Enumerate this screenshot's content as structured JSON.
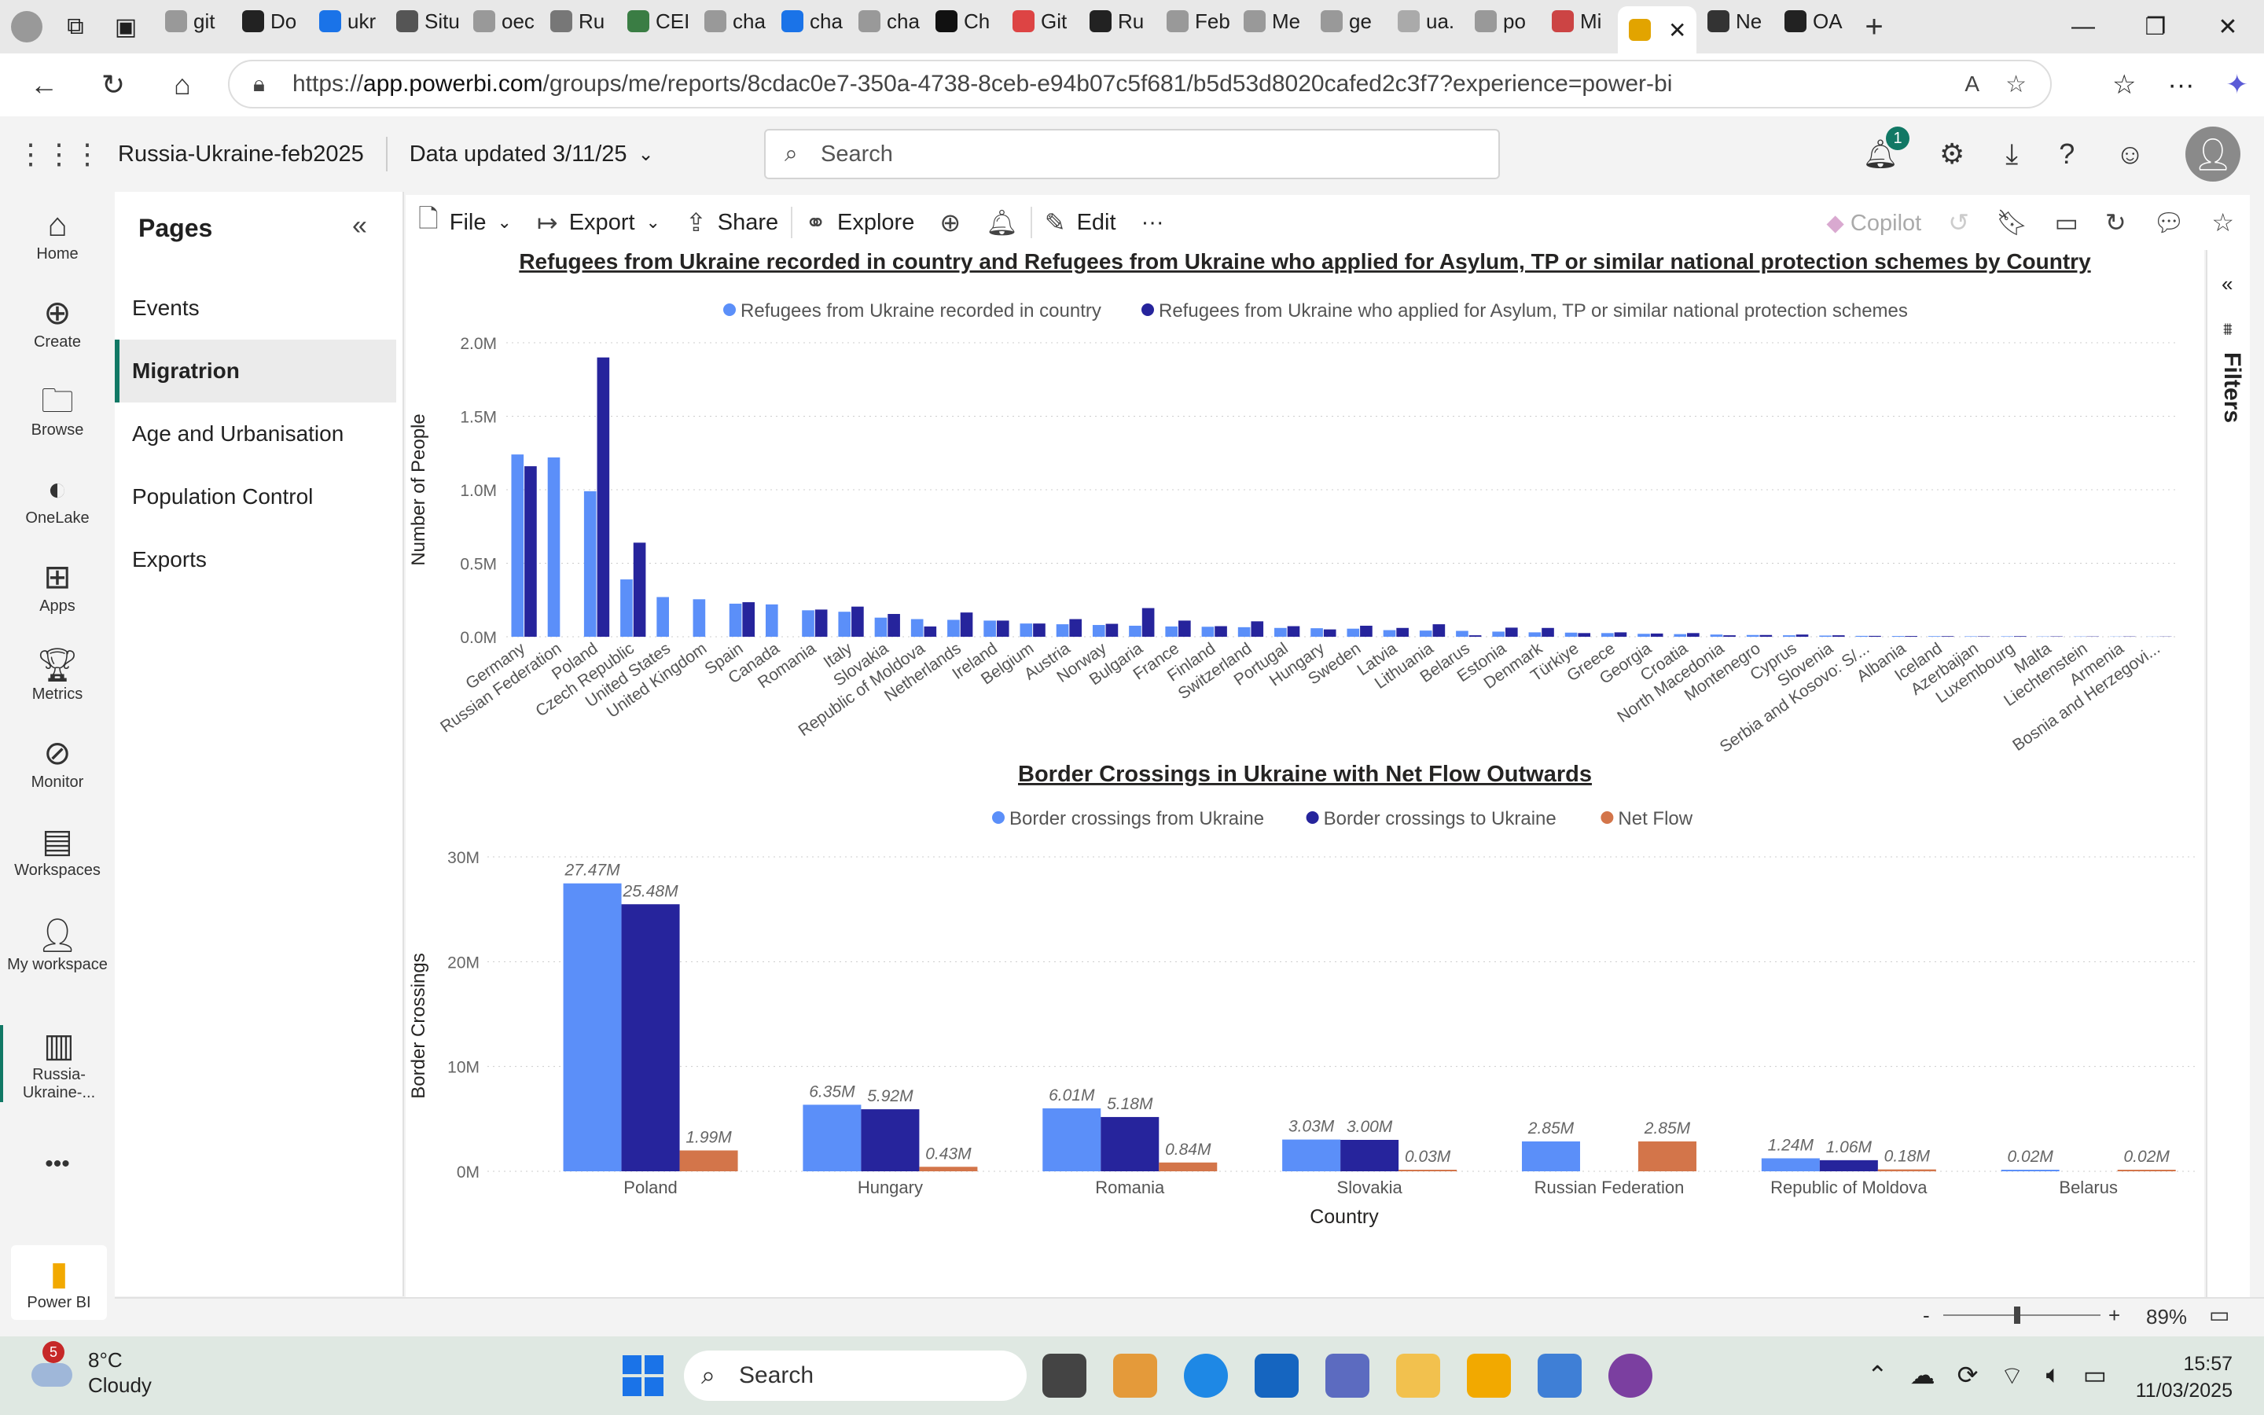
{
  "browser": {
    "tabs": [
      "git",
      "Do",
      "ukr",
      "Situ",
      "oec",
      "Ru",
      "CEI",
      "cha",
      "cha",
      "cha",
      "Ch",
      "Git",
      "Ru",
      "Feb",
      "Me",
      "ge",
      "ua.",
      "po",
      "Mi",
      "",
      "Ne",
      "OA"
    ],
    "url_prefix": "https://",
    "url_host": "app.powerbi.com",
    "url_path": "/groups/me/reports/8cdac0e7-350a-4738-8ceb-e94b07c5f681/b5d53d8020cafed2c3f7?experience=power-bi"
  },
  "header": {
    "report_name": "Russia-Ukraine-feb2025",
    "data_updated": "Data updated 3/11/25",
    "search_placeholder": "Search",
    "notification_count": "1"
  },
  "leftnav": {
    "items": [
      "Home",
      "Create",
      "Browse",
      "OneLake",
      "Apps",
      "Metrics",
      "Monitor",
      "Workspaces",
      "My workspace",
      "Russia-Ukraine-...",
      "Power BI"
    ],
    "more": "•••"
  },
  "pages": {
    "title": "Pages",
    "items": [
      "Events",
      "Migratrion",
      "Age and Urbanisation",
      "Population Control",
      "Exports"
    ],
    "selected": 1
  },
  "toolbar": {
    "file": "File",
    "export": "Export",
    "share": "Share",
    "explore": "Explore",
    "edit": "Edit",
    "more": "···",
    "copilot": "Copilot"
  },
  "filters_label": "Filters",
  "status": {
    "zoom": "89%",
    "minus": "-",
    "plus": "+"
  },
  "colors": {
    "series1": "#5b8ff9",
    "series2": "#26249c",
    "series3": "#d3754a",
    "accent": "#117865"
  },
  "chart_data": [
    {
      "type": "bar",
      "title": "Refugees from Ukraine recorded in country and Refugees from Ukraine who applied for Asylum, TP or similar national protection schemes by Country",
      "ylabel": "Number of People",
      "xlabel": "",
      "ylim": [
        0,
        2000000
      ],
      "yticks": [
        "0.0M",
        "0.5M",
        "1.0M",
        "1.5M",
        "2.0M"
      ],
      "legend_position": "top-center",
      "categories": [
        "Germany",
        "Russian Federation",
        "Poland",
        "Czech Republic",
        "United States",
        "United Kingdom",
        "Spain",
        "Canada",
        "Romania",
        "Italy",
        "Slovakia",
        "Republic of Moldova",
        "Netherlands",
        "Ireland",
        "Belgium",
        "Austria",
        "Norway",
        "Bulgaria",
        "France",
        "Finland",
        "Switzerland",
        "Portugal",
        "Hungary",
        "Sweden",
        "Latvia",
        "Lithuania",
        "Belarus",
        "Estonia",
        "Denmark",
        "Türkiye",
        "Greece",
        "Georgia",
        "Croatia",
        "North Macedonia",
        "Montenegro",
        "Cyprus",
        "Slovenia",
        "Serbia and Kosovo: S/...",
        "Albania",
        "Iceland",
        "Azerbaijan",
        "Luxembourg",
        "Malta",
        "Liechtenstein",
        "Armenia",
        "Bosnia and Herzegovi..."
      ],
      "series": [
        {
          "name": "Refugees from Ukraine recorded in country",
          "values": [
            1240000,
            1220000,
            990000,
            390000,
            270000,
            255000,
            225000,
            220000,
            180000,
            170000,
            130000,
            120000,
            115000,
            110000,
            90000,
            85000,
            80000,
            75000,
            70000,
            68000,
            65000,
            60000,
            58000,
            55000,
            45000,
            42000,
            40000,
            35000,
            30000,
            28000,
            25000,
            20000,
            18000,
            15000,
            12000,
            10000,
            8000,
            6000,
            5000,
            4000,
            3000,
            3000,
            2000,
            2000,
            1500,
            1000
          ]
        },
        {
          "name": "Refugees from Ukraine who applied for Asylum, TP or similar national protection schemes",
          "values": [
            1160000,
            0,
            1900000,
            640000,
            0,
            0,
            235000,
            0,
            185000,
            205000,
            155000,
            70000,
            165000,
            110000,
            90000,
            120000,
            88000,
            195000,
            110000,
            72000,
            105000,
            72000,
            50000,
            75000,
            60000,
            85000,
            10000,
            62000,
            60000,
            25000,
            30000,
            22000,
            25000,
            10000,
            12000,
            15000,
            10000,
            6000,
            5000,
            4000,
            3000,
            4000,
            2500,
            2000,
            2000,
            1500
          ]
        }
      ]
    },
    {
      "type": "bar",
      "title": "Border Crossings in Ukraine with Net Flow Outwards",
      "ylabel": "Border Crossings",
      "xlabel": "Country",
      "ylim": [
        0,
        30000000
      ],
      "yticks": [
        "0M",
        "10M",
        "20M",
        "30M"
      ],
      "legend_position": "top-center",
      "categories": [
        "Poland",
        "Hungary",
        "Romania",
        "Slovakia",
        "Russian Federation",
        "Republic of Moldova",
        "Belarus"
      ],
      "series": [
        {
          "name": "Border crossings from Ukraine",
          "values": [
            27470000,
            6350000,
            6010000,
            3030000,
            2850000,
            1240000,
            20000
          ],
          "labels": [
            "27.47M",
            "6.35M",
            "6.01M",
            "3.03M",
            "2.85M",
            "1.24M",
            "0.02M"
          ]
        },
        {
          "name": "Border crossings to Ukraine",
          "values": [
            25480000,
            5920000,
            5180000,
            3000000,
            0,
            1060000,
            0
          ],
          "labels": [
            "25.48M",
            "5.92M",
            "5.18M",
            "3.00M",
            "",
            "1.06M",
            ""
          ]
        },
        {
          "name": "Net Flow",
          "values": [
            1990000,
            430000,
            840000,
            30000,
            2850000,
            180000,
            20000
          ],
          "labels": [
            "1.99M",
            "0.43M",
            "0.84M",
            "0.03M",
            "2.85M",
            "0.18M",
            "0.02M"
          ]
        }
      ]
    }
  ],
  "taskbar": {
    "temp": "8°C",
    "condition": "Cloudy",
    "weather_badge": "5",
    "search": "Search",
    "time": "15:57",
    "date": "11/03/2025"
  }
}
